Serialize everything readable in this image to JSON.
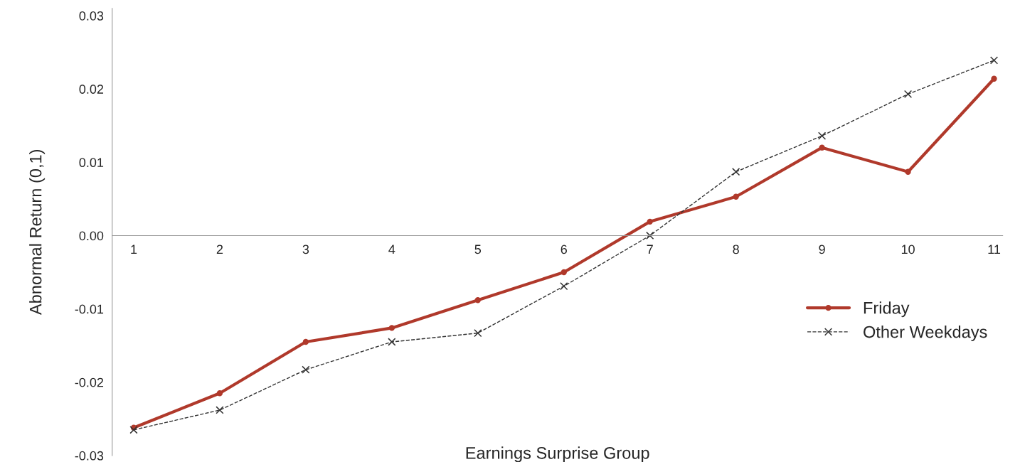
{
  "chart_data": {
    "type": "line",
    "categories": [
      "1",
      "2",
      "3",
      "4",
      "5",
      "6",
      "7",
      "8",
      "9",
      "10",
      "11"
    ],
    "xlabel": "Earnings Surprise Group",
    "ylabel": "Abnormal Return (0,1)",
    "ylim": [
      -0.03,
      0.031
    ],
    "yticks": [
      {
        "value": -0.03,
        "label": "-0.03"
      },
      {
        "value": -0.02,
        "label": "-0.02"
      },
      {
        "value": -0.01,
        "label": "-0.01"
      },
      {
        "value": 0,
        "label": "0.00"
      },
      {
        "value": 0.01,
        "label": "0.01"
      },
      {
        "value": 0.02,
        "label": "0.02"
      },
      {
        "value": 0.03,
        "label": "0.03"
      }
    ],
    "grid": false,
    "legend": "right",
    "series": [
      {
        "name": "Friday",
        "color": "#b0392b",
        "marker": "circle",
        "line_style": "solid",
        "values": [
          -0.0262,
          -0.0215,
          -0.0145,
          -0.0126,
          -0.0088,
          -0.005,
          0.0019,
          0.0053,
          0.012,
          0.0087,
          0.0214
        ]
      },
      {
        "name": "Other Weekdays",
        "color": "#333333",
        "marker": "cross",
        "line_style": "dashed",
        "values": [
          -0.0265,
          -0.0238,
          -0.0183,
          -0.0145,
          -0.0133,
          -0.0069,
          0.0,
          0.0087,
          0.0136,
          0.0193,
          0.0239
        ]
      }
    ]
  }
}
